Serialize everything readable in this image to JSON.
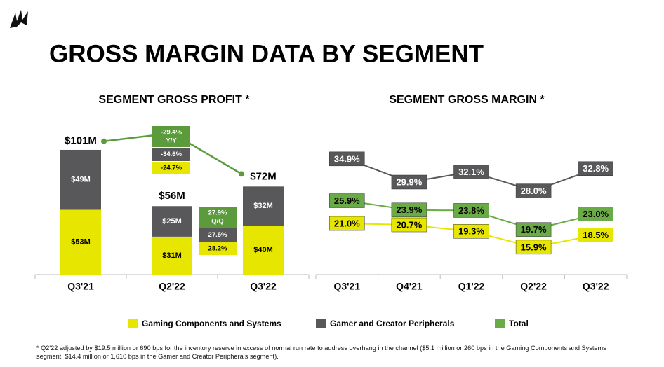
{
  "title": "GROSS MARGIN DATA BY SEGMENT",
  "chart_data": [
    {
      "type": "bar",
      "stacked": true,
      "title": "SEGMENT GROSS PROFIT *",
      "categories": [
        "Q3'21",
        "Q2'22",
        "Q3'22"
      ],
      "series": [
        {
          "name": "Gaming Components and Systems",
          "color": "#e6e600",
          "values": [
            53,
            31,
            40
          ],
          "value_labels": [
            "$53M",
            "$31M",
            "$40M"
          ]
        },
        {
          "name": "Gamer and Creator Peripherals",
          "color": "#58585a",
          "values": [
            49,
            25,
            32
          ],
          "value_labels": [
            "$49M",
            "$25M",
            "$32M"
          ]
        }
      ],
      "totals": {
        "color": "#5b9b3c",
        "values": [
          101,
          56,
          72
        ],
        "value_labels": [
          "$101M",
          "$56M",
          "$72M"
        ]
      },
      "ylim": [
        0,
        110
      ],
      "annotations": [
        {
          "label": "Y/Y",
          "values": [
            -24.7,
            -34.6,
            -29.4
          ],
          "value_labels": [
            "-24.7%",
            "-34.6%",
            "-29.4%"
          ]
        },
        {
          "label": "Q/Q",
          "values": [
            28.2,
            27.5,
            27.9
          ],
          "value_labels": [
            "28.2%",
            "27.5%",
            "27.9%"
          ]
        }
      ]
    },
    {
      "type": "line",
      "title": "SEGMENT GROSS MARGIN *",
      "categories": [
        "Q3'21",
        "Q4'21",
        "Q1'22",
        "Q2'22",
        "Q3'22"
      ],
      "series": [
        {
          "name": "Gaming Components and Systems",
          "color": "#e6e600",
          "values": [
            21.0,
            20.7,
            19.3,
            15.9,
            18.5
          ],
          "value_labels": [
            "21.0%",
            "20.7%",
            "19.3%",
            "15.9%",
            "18.5%"
          ]
        },
        {
          "name": "Gamer and Creator Peripherals",
          "color": "#58585a",
          "values": [
            34.9,
            29.9,
            32.1,
            28.0,
            32.8
          ],
          "value_labels": [
            "34.9%",
            "29.9%",
            "32.1%",
            "28.0%",
            "32.8%"
          ]
        },
        {
          "name": "Total",
          "color": "#6aab47",
          "values": [
            25.9,
            23.9,
            23.8,
            19.7,
            23.0
          ],
          "value_labels": [
            "25.9%",
            "23.9%",
            "23.8%",
            "19.7%",
            "23.0%"
          ]
        }
      ],
      "ylim": [
        10,
        40
      ]
    }
  ],
  "footnote": "* Q2'22 adjusted by $19.5 million or 690 bps for the inventory reserve in excess of normal run rate to address overhang in the channel ($5.1 million or 260 bps in the Gaming Components and Systems segment; $14.4 million or 1,610 bps in the Gamer and Creator Peripherals segment)."
}
